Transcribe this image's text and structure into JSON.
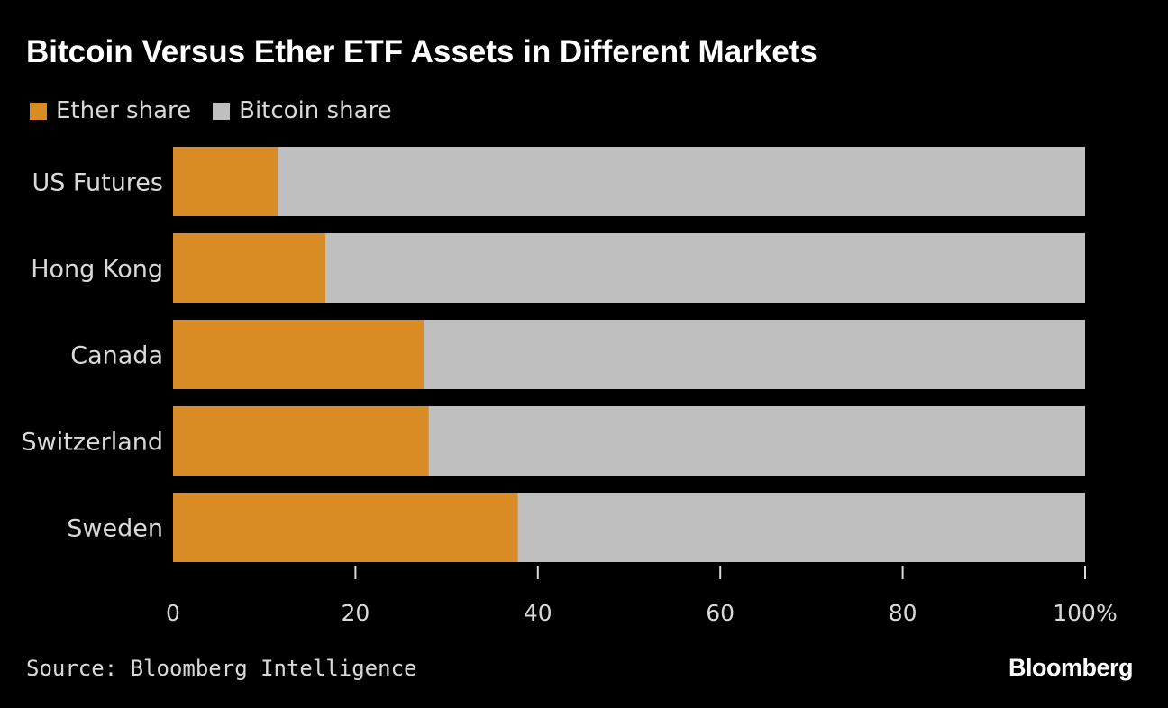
{
  "title": "Bitcoin Versus Ether ETF Assets in Different Markets",
  "source": "Source: Bloomberg Intelligence",
  "logo": "Bloomberg",
  "colors": {
    "ether": "#d98b25",
    "bitcoin": "#bfbfbf",
    "background": "#000000"
  },
  "chart_data": {
    "type": "bar",
    "orientation": "horizontal",
    "stacked": true,
    "categories": [
      "US Futures",
      "Hong Kong",
      "Canada",
      "Switzerland",
      "Sweden"
    ],
    "series": [
      {
        "name": "Ether share",
        "values": [
          11.5,
          16.7,
          27.5,
          28,
          37.8
        ]
      },
      {
        "name": "Bitcoin share",
        "values": [
          88.5,
          83.3,
          72.5,
          72,
          62.2
        ]
      }
    ],
    "x_ticks": [
      "0",
      "20",
      "40",
      "60",
      "80",
      "100%"
    ],
    "xlim": [
      0,
      100
    ],
    "grid": false,
    "legend_position": "top-left"
  }
}
